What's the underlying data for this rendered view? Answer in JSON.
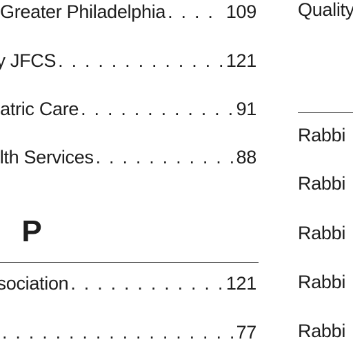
{
  "left_column": {
    "entries_top": [
      {
        "name": "Greater Philadelphia",
        "leader": " . . . .",
        "page": "109"
      },
      {
        "name": "by JFCS",
        "leader": ". . . . . . . . . . . . . . . .",
        "page": "121"
      },
      {
        "name": "hiatric Care",
        "leader": ". . . . . . . . . . . . . .",
        "page": "91"
      },
      {
        "name": "alth Services",
        "leader": ". . . . . . . . . . . .",
        "page": "88"
      }
    ],
    "section_letter": "P",
    "entries_bottom": [
      {
        "name": "ssociation",
        "leader": ". . . . . . . . . . . . . .",
        "page": "121"
      },
      {
        "name": "",
        "leader": ". . . . . . . . . . . . . . . . . . . . . . . .",
        "page": "77"
      }
    ]
  },
  "right_column": {
    "top_entry": "Quality",
    "entries": [
      "Rabbi",
      "Rabbi",
      "Rabbi",
      "Rabbi",
      "Rabbi"
    ]
  }
}
